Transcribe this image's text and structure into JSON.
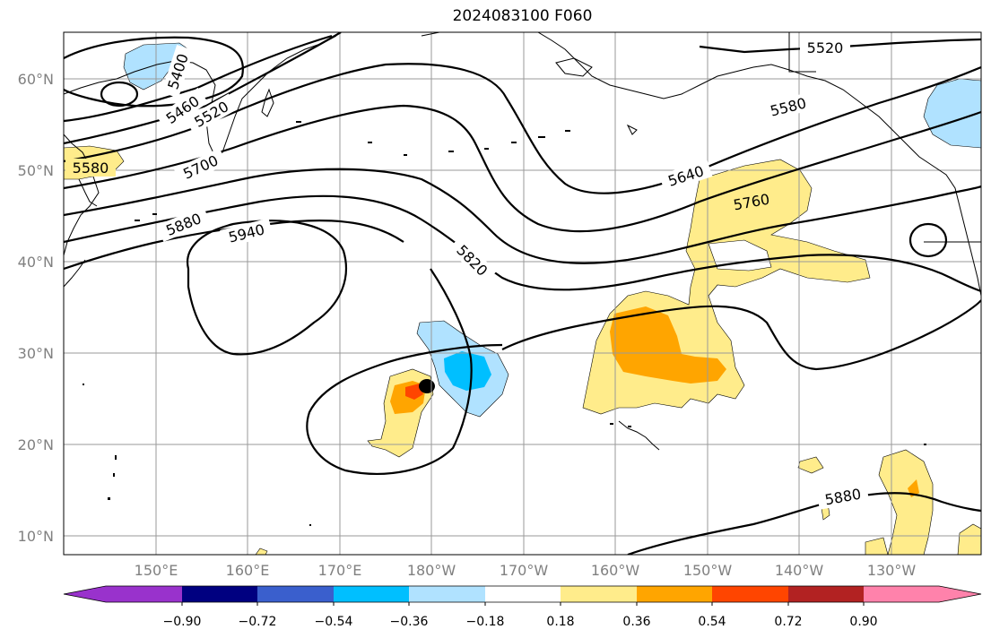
{
  "title": "2024083100 F060",
  "lat_labels": [
    "60°N",
    "50°N",
    "40°N",
    "30°N",
    "20°N",
    "10°N"
  ],
  "lon_labels": [
    "150°E",
    "160°E",
    "170°E",
    "180°W",
    "170°W",
    "160°W",
    "150°W",
    "140°W",
    "130°W"
  ],
  "contour_labels": [
    "5520",
    "5580",
    "5640",
    "5760",
    "5820",
    "5940",
    "5880",
    "5700",
    "5520",
    "5460",
    "5400",
    "5580",
    "5880"
  ],
  "colorbar": {
    "colors": [
      "#9932cc",
      "#000080",
      "#3a5fcd",
      "#00bfff",
      "#b0e2ff",
      "#ffffff",
      "#ffec8b",
      "#ffa500",
      "#ff4500",
      "#b22222",
      "#ff82ab"
    ],
    "tick_labels": [
      "−0.90",
      "−0.72",
      "−0.54",
      "−0.36",
      "−0.18",
      "0.18",
      "0.36",
      "0.54",
      "0.72",
      "0.90"
    ]
  }
}
